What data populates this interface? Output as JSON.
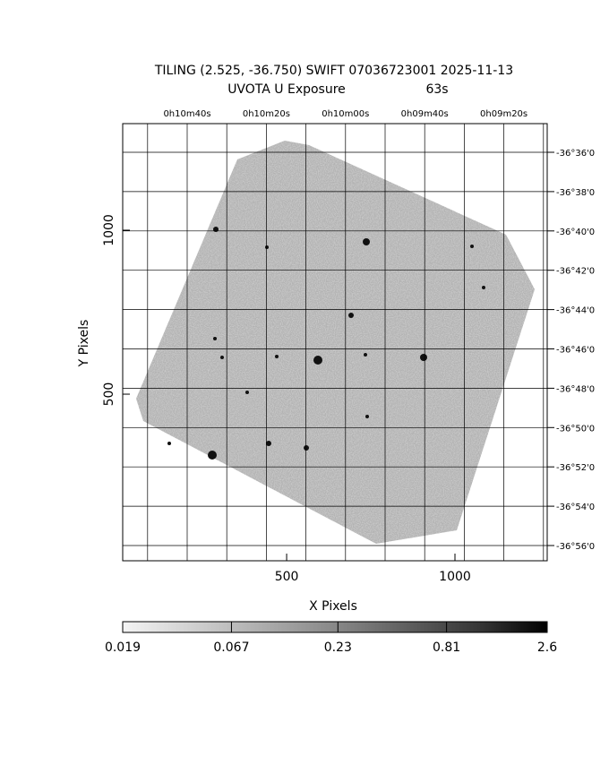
{
  "chart_data": {
    "type": "image",
    "title": "TILING (2.525, -36.750) SWIFT 07036723001 2025-11-13",
    "subtitle": "UVOTA U Exposure",
    "exposure": "63s",
    "xlabel": "X Pixels",
    "ylabel": "Y Pixels",
    "xlim": [
      13,
      1274
    ],
    "ylim": [
      -8,
      1325
    ],
    "xticks": [
      500,
      1000
    ],
    "yticks": [
      500,
      1000
    ],
    "ra_labels": [
      "0h10m40s",
      "0h10m20s",
      "0h10m00s",
      "0h09m40s",
      "0h09m20s"
    ],
    "dec_labels": [
      "-36°36'0",
      "-36°38'0",
      "-36°40'0",
      "-36°42'0",
      "-36°44'0",
      "-36°46'0",
      "-36°48'0",
      "-36°50'0",
      "-36°52'0",
      "-36°54'0",
      "-36°56'0"
    ],
    "grid": true,
    "colorbar": {
      "scale": "log",
      "lim": [
        0.019,
        2.6
      ],
      "ticks": [
        {
          "value": 0.019,
          "label": "0.019"
        },
        {
          "value": 0.067,
          "label": "0.067"
        },
        {
          "value": 0.23,
          "label": "0.23"
        },
        {
          "value": 0.81,
          "label": "0.81"
        },
        {
          "value": 2.6,
          "label": "2.6"
        }
      ]
    }
  }
}
